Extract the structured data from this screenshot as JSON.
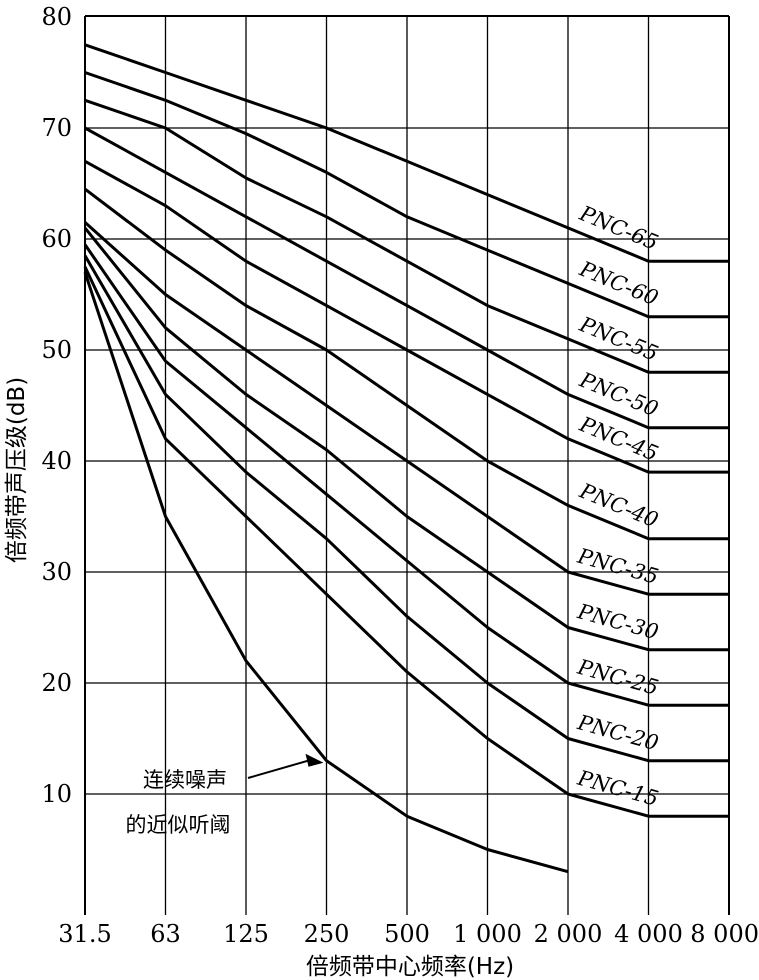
{
  "chart_data": {
    "type": "line",
    "xlabel": "倍频带中心频率(Hz)",
    "ylabel": "倍频带声压级(dB)",
    "ylim": [
      0,
      80
    ],
    "yticks": [
      "10",
      "20",
      "30",
      "40",
      "50",
      "60",
      "70",
      "80"
    ],
    "categories": [
      "31.5",
      "63",
      "125",
      "250",
      "500",
      "1 000",
      "2 000",
      "4 000",
      "8 000"
    ],
    "grid": "partial",
    "series": [
      {
        "name": "PNC-65",
        "values": [
          77.5,
          75,
          72.5,
          70,
          67,
          64,
          61,
          58,
          58
        ]
      },
      {
        "name": "PNC-60",
        "values": [
          75,
          72.5,
          69.5,
          66,
          62,
          59,
          56,
          53,
          53
        ]
      },
      {
        "name": "PNC-55",
        "values": [
          72.5,
          70,
          65.5,
          62,
          58,
          54,
          51,
          48,
          48
        ]
      },
      {
        "name": "PNC-50",
        "values": [
          70,
          66,
          62,
          58,
          54,
          50,
          46,
          43,
          43
        ]
      },
      {
        "name": "PNC-45",
        "values": [
          67,
          63,
          58,
          54,
          50,
          46,
          42,
          39,
          39
        ]
      },
      {
        "name": "PNC-40",
        "values": [
          64.5,
          59,
          54,
          50,
          45,
          40,
          36,
          33,
          33
        ]
      },
      {
        "name": "PNC-35",
        "values": [
          61.5,
          55,
          50,
          45,
          40,
          35,
          30,
          28,
          28
        ]
      },
      {
        "name": "PNC-30",
        "values": [
          61,
          52,
          46,
          41,
          35,
          30,
          25,
          23,
          23
        ]
      },
      {
        "name": "PNC-25",
        "values": [
          59.5,
          49,
          43,
          37,
          31,
          25,
          20,
          18,
          18
        ]
      },
      {
        "name": "PNC-20",
        "values": [
          58.5,
          46,
          39,
          33,
          26,
          20,
          15,
          13,
          13
        ]
      },
      {
        "name": "PNC-15",
        "values": [
          57.5,
          42,
          35,
          28,
          21,
          15,
          10,
          8,
          8
        ]
      },
      {
        "name": "连续噪声的近似听阈",
        "values": [
          57,
          35,
          22,
          13,
          8,
          5,
          3,
          null,
          null
        ]
      }
    ],
    "threshold_label": [
      "连续噪声",
      "的近似听阈"
    ]
  }
}
